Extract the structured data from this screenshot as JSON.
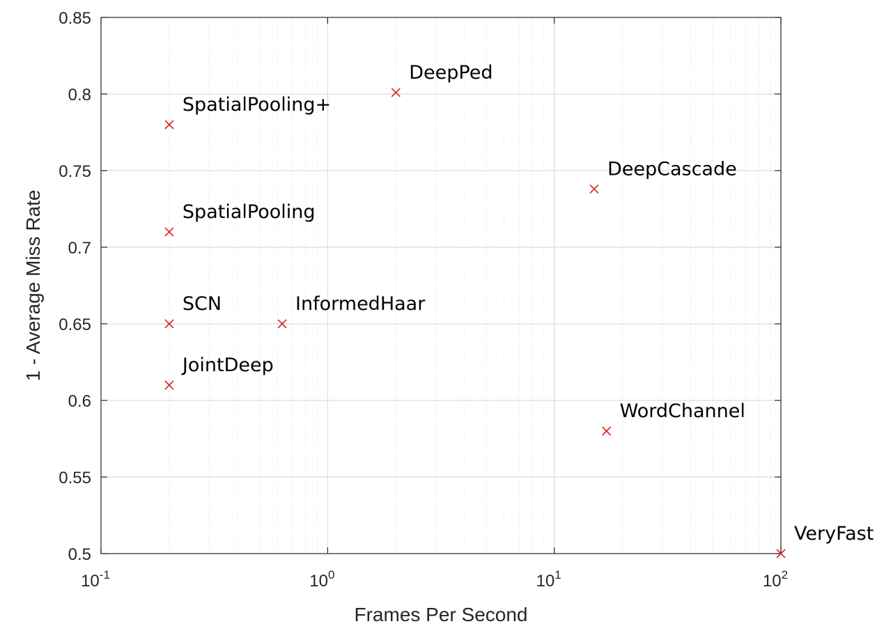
{
  "chart_data": {
    "type": "scatter",
    "title": "",
    "xlabel": "Frames Per Second",
    "ylabel": "1 - Average Miss Rate",
    "x_scale": "log",
    "xlim": [
      0.1,
      100
    ],
    "ylim": [
      0.5,
      0.85
    ],
    "grid": true,
    "x_ticks": [
      {
        "value": 0.1,
        "base": "10",
        "exp": "-1"
      },
      {
        "value": 1,
        "base": "10",
        "exp": "0"
      },
      {
        "value": 10,
        "base": "10",
        "exp": "1"
      },
      {
        "value": 100,
        "base": "10",
        "exp": "2"
      }
    ],
    "y_ticks": [
      "0.5",
      "0.55",
      "0.6",
      "0.65",
      "0.7",
      "0.75",
      "0.8",
      "0.85"
    ],
    "marker": "x",
    "marker_color": "#d62728",
    "points": [
      {
        "label": "DeepPed",
        "x": 2.0,
        "y": 0.801
      },
      {
        "label": "SpatialPooling+",
        "x": 0.2,
        "y": 0.78
      },
      {
        "label": "DeepCascade",
        "x": 15.0,
        "y": 0.738
      },
      {
        "label": "SpatialPooling",
        "x": 0.2,
        "y": 0.71
      },
      {
        "label": "SCN",
        "x": 0.2,
        "y": 0.65
      },
      {
        "label": "InformedHaar",
        "x": 0.63,
        "y": 0.65
      },
      {
        "label": "JointDeep",
        "x": 0.2,
        "y": 0.61
      },
      {
        "label": "WordChannel",
        "x": 17.0,
        "y": 0.58
      },
      {
        "label": "VeryFast",
        "x": 100.0,
        "y": 0.5
      }
    ]
  }
}
